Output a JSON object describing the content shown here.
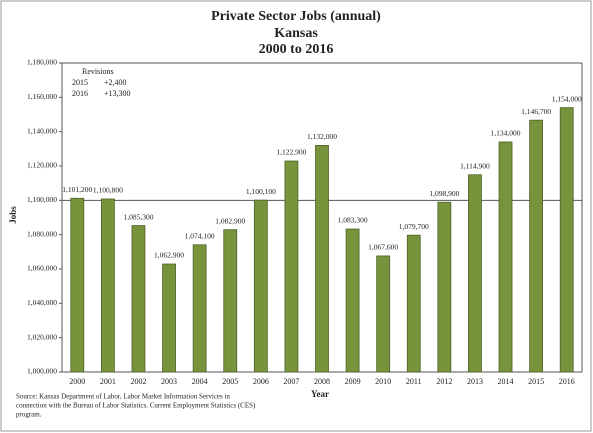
{
  "chart_data": {
    "type": "bar",
    "title": [
      "Private Sector Jobs (annual)",
      "Kansas",
      "2000 to 2016"
    ],
    "x_label": "Year",
    "y_label": "Jobs",
    "categories": [
      "2000",
      "2001",
      "2002",
      "2003",
      "2004",
      "2005",
      "2006",
      "2007",
      "2008",
      "2009",
      "2010",
      "2011",
      "2012",
      "2013",
      "2014",
      "2015",
      "2016"
    ],
    "values": [
      1101200,
      1100800,
      1085300,
      1062900,
      1074100,
      1082900,
      1100100,
      1122900,
      1132000,
      1083300,
      1067600,
      1079700,
      1098900,
      1114900,
      1134000,
      1146700,
      1154000
    ],
    "value_labels": [
      "1,101,200",
      "1,100,800",
      "1,085,300",
      "1,062,900",
      "1,074,100",
      "1,082,900",
      "1,100,100",
      "1,122,900",
      "1,132,000",
      "1,083,300",
      "1,067,600",
      "1,079,700",
      "1,098,900",
      "1,114,900",
      "1,134,000",
      "1,146,700",
      "1,154,000"
    ],
    "color": "#77933c",
    "ylim": [
      1000000,
      1180000
    ],
    "yticks": [
      {
        "value": 1000000,
        "label": "1,000,000"
      },
      {
        "value": 1020000,
        "label": "1,020,000"
      },
      {
        "value": 1040000,
        "label": "1,040,000"
      },
      {
        "value": 1060000,
        "label": "1,060,000"
      },
      {
        "value": 1080000,
        "label": "1,080,000"
      },
      {
        "value": 1100000,
        "label": "1,100,000"
      },
      {
        "value": 1120000,
        "label": "1,120,000"
      },
      {
        "value": 1140000,
        "label": "1,140,000"
      },
      {
        "value": 1160000,
        "label": "1,160,000"
      },
      {
        "value": 1180000,
        "label": "1,180,000"
      }
    ],
    "reference_line": 1100000,
    "annotation": {
      "title": "Revisions",
      "rows": [
        [
          "2015",
          "+2,400"
        ],
        [
          "2016",
          "+13,300"
        ]
      ]
    },
    "source": [
      "Source: Kansas Department of Labor, Labor Market Information Services in",
      "connection with the Bureau of Labor Statistics.  Current Employment Statistics (CES)",
      "program."
    ]
  }
}
